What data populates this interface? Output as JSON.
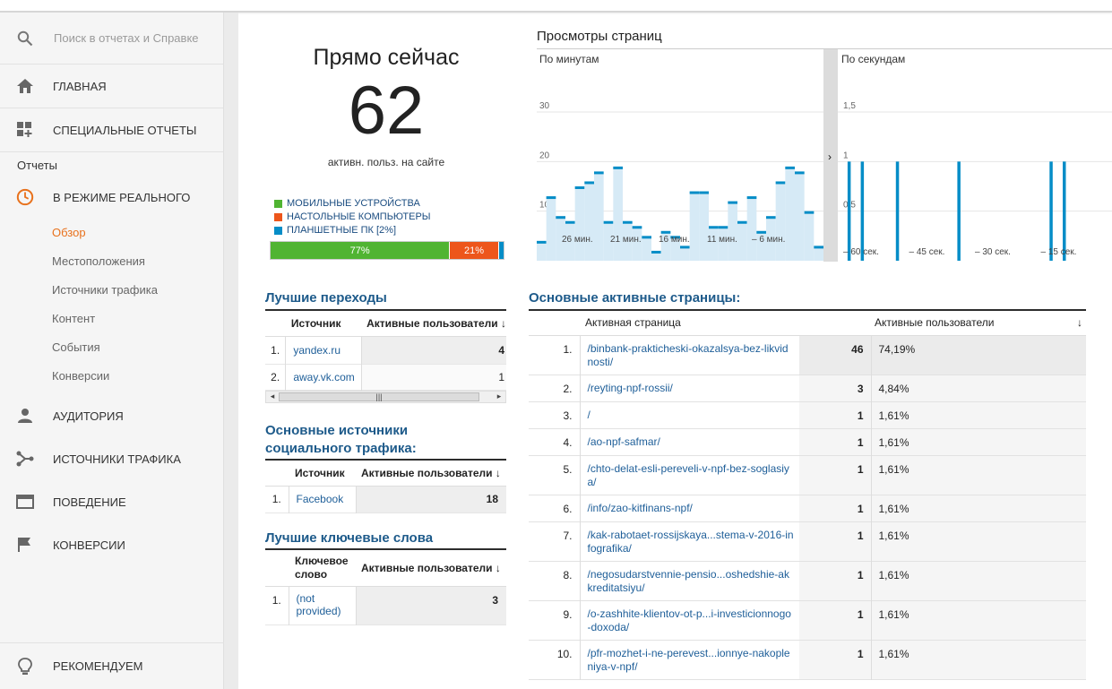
{
  "sidebar": {
    "search_placeholder": "Поиск в отчетах и Справке",
    "home": "ГЛАВНАЯ",
    "custom_reports": "СПЕЦИАЛЬНЫЕ ОТЧЕТЫ",
    "reports_section": "Отчеты",
    "realtime": "В РЕЖИМЕ РЕАЛЬНОГО",
    "realtime_items": [
      "Обзор",
      "Местоположения",
      "Источники трафика",
      "Контент",
      "События",
      "Конверсии"
    ],
    "audience": "АУДИТОРИЯ",
    "acquisition": "ИСТОЧНИКИ ТРАФИКА",
    "behavior": "ПОВЕДЕНИЕ",
    "conversions": "КОНВЕРСИИ",
    "recommend": "РЕКОМЕНДУЕМ"
  },
  "now": {
    "title": "Прямо сейчас",
    "count": "62",
    "subtitle": "активн. польз. на сайте",
    "legend": [
      {
        "label": "МОБИЛЬНЫЕ УСТРОЙСТВА",
        "color": "#50b432"
      },
      {
        "label": "НАСТОЛЬНЫЕ КОМПЬЮТЕРЫ",
        "color": "#ed561b"
      },
      {
        "label": "ПЛАНШЕТНЫЕ ПК [2%]",
        "color": "#058dc7"
      }
    ],
    "split": [
      {
        "label": "77%",
        "value": 77,
        "color": "#50b432"
      },
      {
        "label": "21%",
        "value": 21,
        "color": "#ed561b"
      },
      {
        "label": "",
        "value": 2,
        "color": "#058dc7"
      }
    ]
  },
  "pageviews": {
    "title": "Просмотры страниц",
    "per_minute_label": "По минутам",
    "per_second_label": "По секундам"
  },
  "chart_data": [
    {
      "type": "bar",
      "title": "По минутам",
      "ylim": [
        0,
        30
      ],
      "y_ticks": [
        "10",
        "20",
        "30"
      ],
      "x_tick_labels": [
        "26 мин.",
        "21 мин.",
        "16 мин.",
        "11 мин.",
        "– 6 мин."
      ],
      "color": "#058dc7",
      "values": [
        4,
        13,
        9,
        8,
        15,
        16,
        18,
        8,
        19,
        8,
        7,
        5,
        2,
        6,
        5,
        3,
        14,
        14,
        7,
        7,
        12,
        8,
        13,
        6,
        9,
        16,
        19,
        18,
        10,
        3
      ]
    },
    {
      "type": "bar",
      "title": "По секундам",
      "ylim": [
        0,
        1.5
      ],
      "y_ticks": [
        "0,5",
        "1",
        "1,5"
      ],
      "x_tick_labels": [
        "– 60 сек.",
        "– 45 сек.",
        "– 30 сек.",
        "– 15 сек."
      ],
      "color": "#058dc7",
      "values_by_second_ago": [
        {
          "sec": 59,
          "v": 1
        },
        {
          "sec": 56,
          "v": 1
        },
        {
          "sec": 48,
          "v": 1
        },
        {
          "sec": 34,
          "v": 1
        },
        {
          "sec": 13,
          "v": 1
        },
        {
          "sec": 10,
          "v": 1
        }
      ]
    }
  ],
  "referrals": {
    "title": "Лучшие переходы",
    "col_source": "Источник",
    "col_users": "Активные пользователи",
    "rows": [
      {
        "n": "1.",
        "source": "yandex.ru",
        "users": "4"
      },
      {
        "n": "2.",
        "source": "away.vk.com",
        "users": "1"
      }
    ]
  },
  "social": {
    "title": "Основные источники социального трафика:",
    "col_source": "Источник",
    "col_users": "Активные пользователи",
    "rows": [
      {
        "n": "1.",
        "source": "Facebook",
        "users": "18"
      }
    ]
  },
  "keywords": {
    "title": "Лучшие ключевые слова",
    "col_keyword": "Ключевое слово",
    "col_users": "Активные пользователи",
    "rows": [
      {
        "n": "1.",
        "keyword": "(not provided)",
        "users": "3"
      }
    ]
  },
  "pages": {
    "title": "Основные активные страницы:",
    "col_page": "Активная страница",
    "col_users": "Активные пользователи",
    "rows": [
      {
        "n": "1.",
        "page": "/binbank-prakticheski-okazalsya-bez-likvidnosti/",
        "users": "46",
        "pct": "74,19%",
        "share": 0.7419
      },
      {
        "n": "2.",
        "page": "/reyting-npf-rossii/",
        "users": "3",
        "pct": "4,84%",
        "share": 0.0484
      },
      {
        "n": "3.",
        "page": "/",
        "users": "1",
        "pct": "1,61%",
        "share": 0.0161
      },
      {
        "n": "4.",
        "page": "/ao-npf-safmar/",
        "users": "1",
        "pct": "1,61%",
        "share": 0.0161
      },
      {
        "n": "5.",
        "page": "/chto-delat-esli-pereveli-v-npf-bez-soglasiya/",
        "users": "1",
        "pct": "1,61%",
        "share": 0.0161
      },
      {
        "n": "6.",
        "page": "/info/zao-kitfinans-npf/",
        "users": "1",
        "pct": "1,61%",
        "share": 0.0161
      },
      {
        "n": "7.",
        "page": "/kak-rabotaet-rossijskaya...stema-v-2016-infografika/",
        "users": "1",
        "pct": "1,61%",
        "share": 0.0161
      },
      {
        "n": "8.",
        "page": "/negosudarstvennie-pensio...oshedshie-akkreditatsiyu/",
        "users": "1",
        "pct": "1,61%",
        "share": 0.0161
      },
      {
        "n": "9.",
        "page": "/o-zashhite-klientov-ot-p...i-investicionnogo-doxoda/",
        "users": "1",
        "pct": "1,61%",
        "share": 0.0161
      },
      {
        "n": "10.",
        "page": "/pfr-mozhet-i-ne-perevest...ionnye-nakopleniya-v-npf/",
        "users": "1",
        "pct": "1,61%",
        "share": 0.0161
      }
    ]
  }
}
